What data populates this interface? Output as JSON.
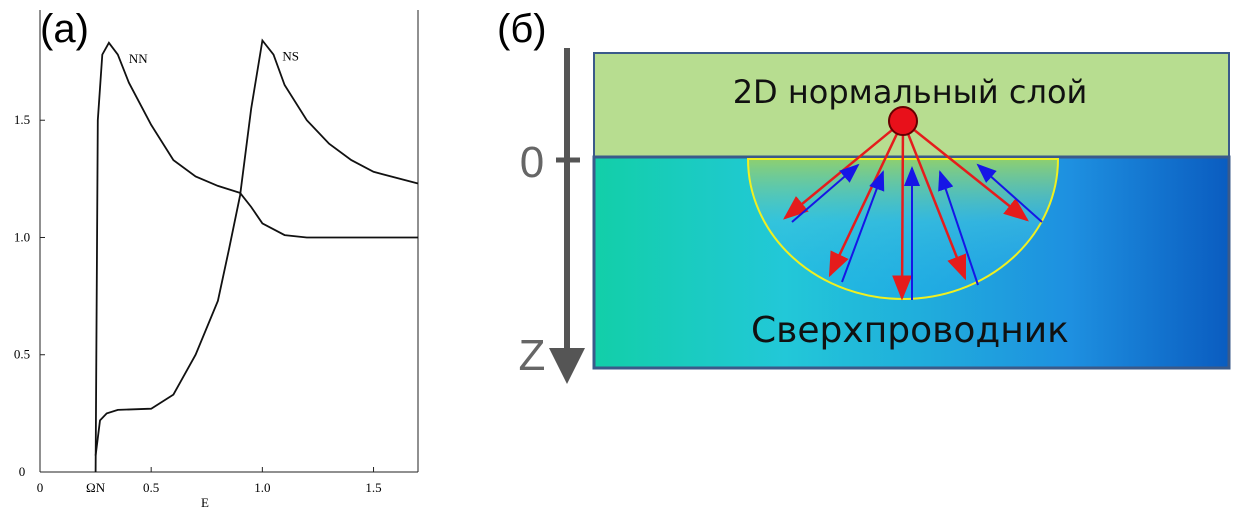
{
  "chart_data": {
    "type": "line",
    "panel_label": "(a)",
    "x_label": "E",
    "xlim": [
      0,
      1.7
    ],
    "ylim": [
      0,
      1.97
    ],
    "xticks": [
      0,
      {
        "value": 0.25,
        "label": "ΩN"
      },
      0.5,
      {
        "value": 1.0,
        "label": "1.0"
      },
      1.5
    ],
    "yticks": [
      0,
      0.5,
      {
        "value": 1.0,
        "label": "1.0"
      },
      1.5
    ],
    "color": "#111111",
    "series": [
      {
        "name": "NN",
        "x": [
          0.25,
          0.26,
          0.28,
          0.31,
          0.35,
          0.4,
          0.5,
          0.6,
          0.7,
          0.8,
          0.9,
          0.95,
          1.0,
          1.1,
          1.2,
          1.4,
          1.7
        ],
        "values": [
          0,
          1.5,
          1.78,
          1.83,
          1.78,
          1.66,
          1.48,
          1.33,
          1.26,
          1.22,
          1.19,
          1.13,
          1.06,
          1.01,
          1.0,
          1.0,
          1.0
        ]
      },
      {
        "name": "NS",
        "x": [
          0.25,
          0.27,
          0.3,
          0.35,
          0.5,
          0.6,
          0.7,
          0.8,
          0.85,
          0.9,
          0.95,
          1.0,
          1.05,
          1.1,
          1.2,
          1.3,
          1.4,
          1.5,
          1.7
        ],
        "values": [
          0.07,
          0.22,
          0.25,
          0.265,
          0.27,
          0.33,
          0.5,
          0.73,
          0.95,
          1.18,
          1.55,
          1.84,
          1.78,
          1.65,
          1.5,
          1.4,
          1.33,
          1.28,
          1.23
        ]
      }
    ]
  },
  "diagram": {
    "panel_label": "(б)",
    "normal_layer": "2D нормальный слой",
    "superconductor": "Сверхпроводник",
    "axis_origin": "0",
    "axis_label": "Z"
  }
}
